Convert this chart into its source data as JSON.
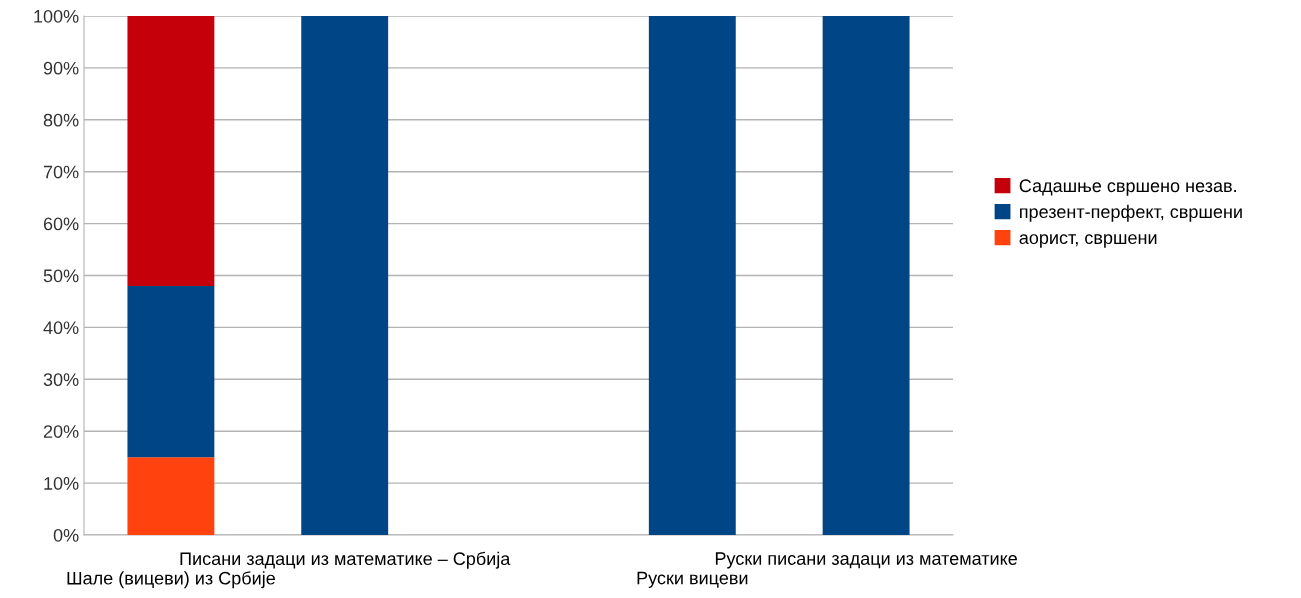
{
  "chart_data": {
    "type": "bar",
    "stacked": true,
    "categories": [
      "Шале (вицеви) из Србије",
      "Писани задаци из математике – Србија",
      null,
      "Руски вицеви",
      "Руски писани задаци из математике"
    ],
    "series": [
      {
        "name": "аорист, свршени",
        "color": "#ff420e",
        "values": [
          15,
          null,
          null,
          null,
          null
        ]
      },
      {
        "name": "презент-перфект, свршени",
        "color": "#004586",
        "values": [
          33,
          100,
          null,
          100,
          100
        ]
      },
      {
        "name": "Садашње свршено незав.",
        "color": "#c5000b",
        "values": [
          52,
          null,
          null,
          null,
          null
        ]
      }
    ],
    "ylim": [
      0,
      100
    ],
    "yticks": [
      {
        "value": 0,
        "label": "0%"
      },
      {
        "value": 10,
        "label": "10%"
      },
      {
        "value": 20,
        "label": "20%"
      },
      {
        "value": 30,
        "label": "30%"
      },
      {
        "value": 40,
        "label": "40%"
      },
      {
        "value": 50,
        "label": "50%"
      },
      {
        "value": 60,
        "label": "60%"
      },
      {
        "value": 70,
        "label": "70%"
      },
      {
        "value": 80,
        "label": "80%"
      },
      {
        "value": 90,
        "label": "90%"
      },
      {
        "value": 100,
        "label": "100%"
      }
    ],
    "grid": "y",
    "legend": "right"
  }
}
